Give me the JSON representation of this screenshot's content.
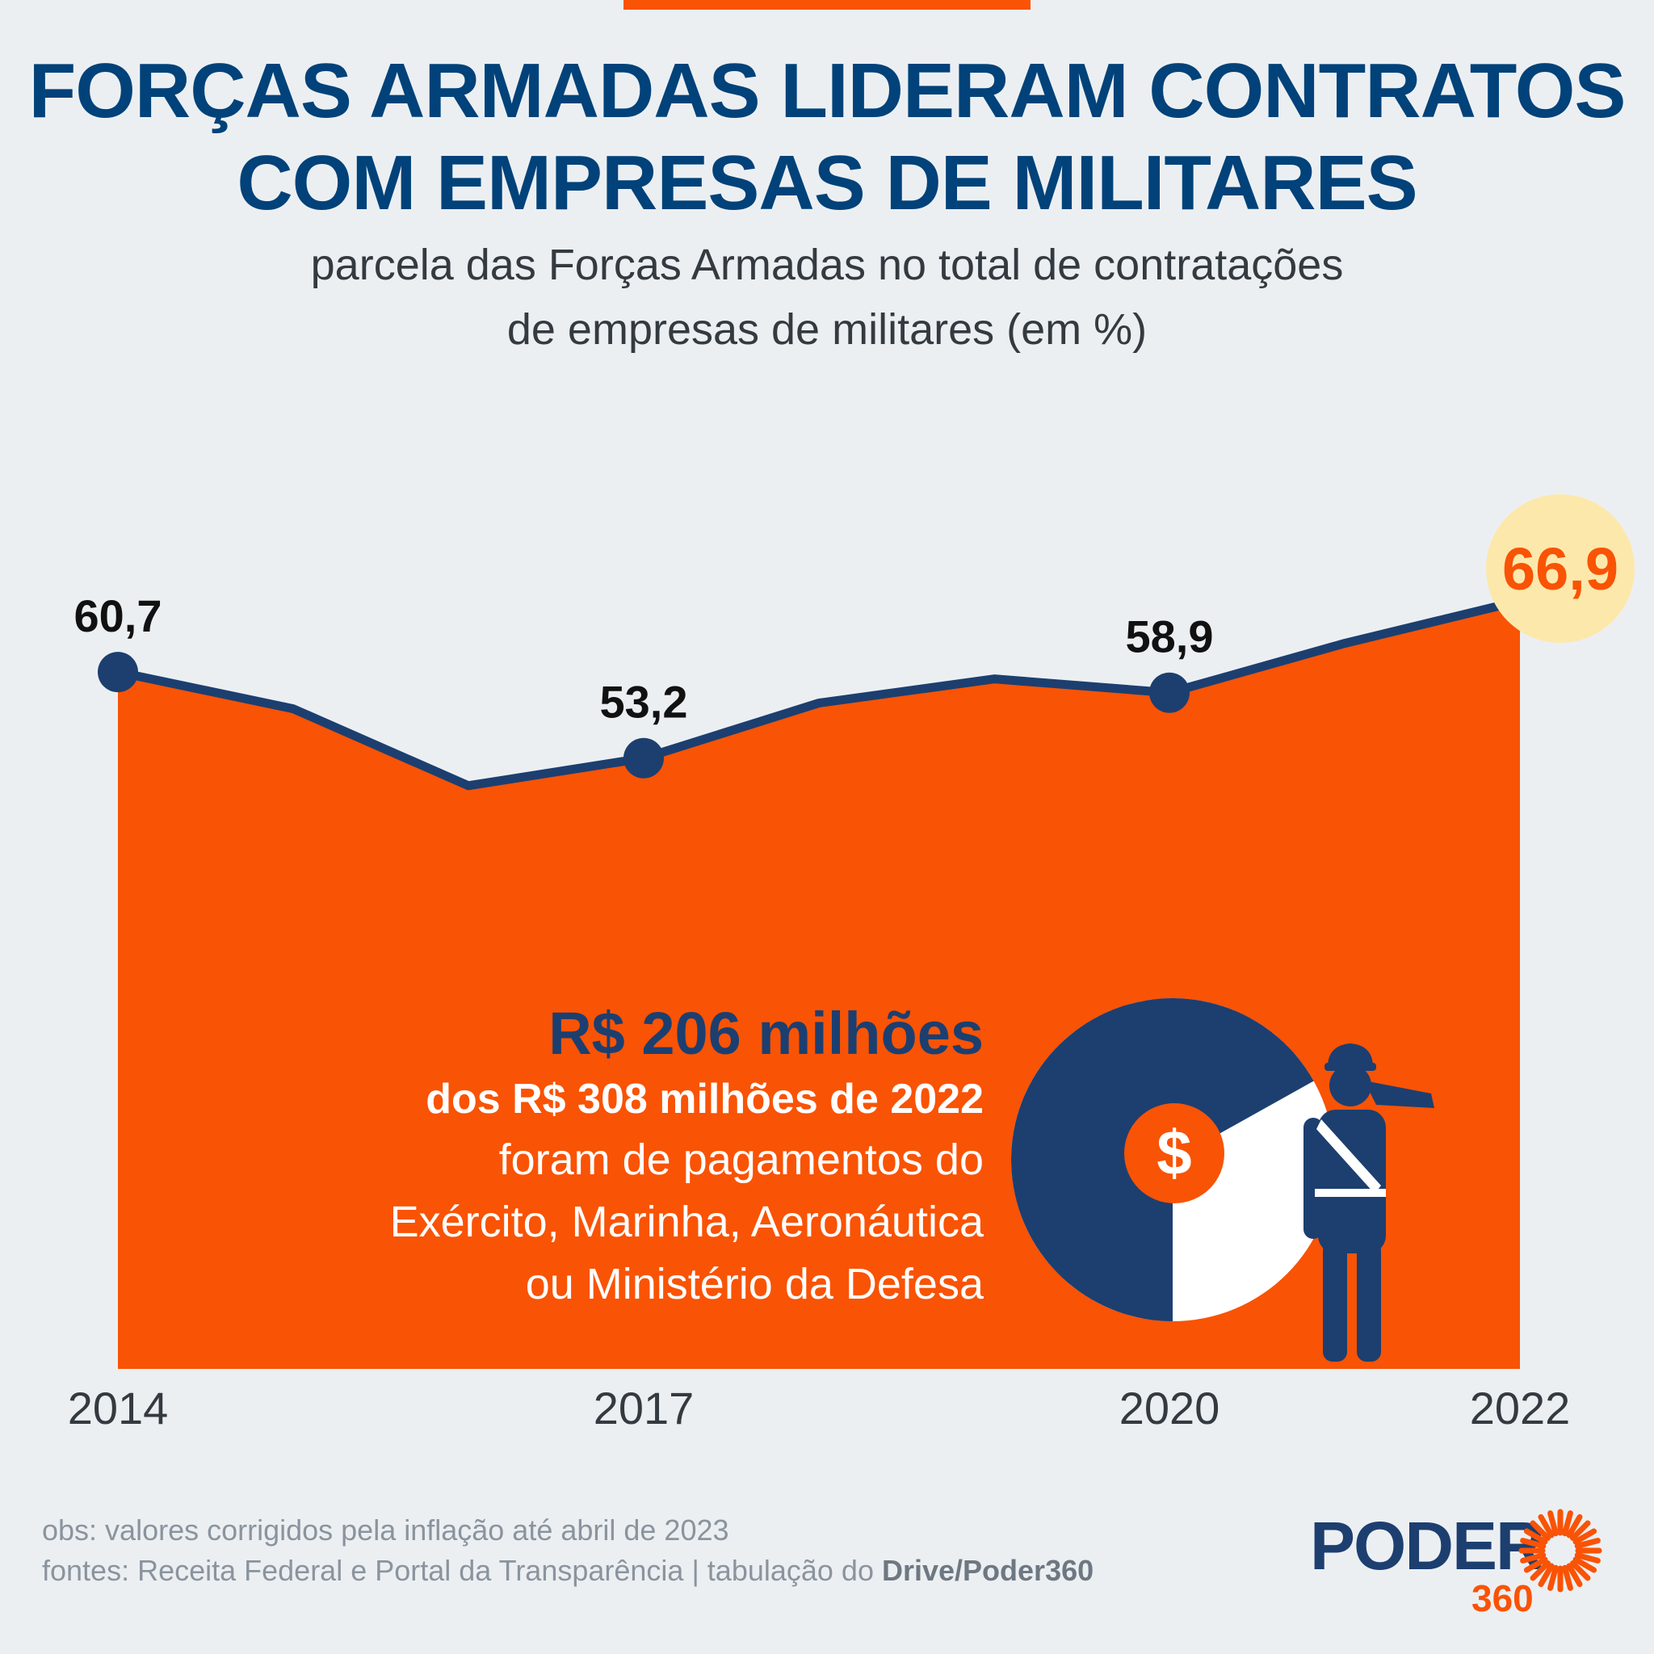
{
  "header": {
    "title_line1": "FORÇAS ARMADAS LIDERAM CONTRATOS",
    "title_line2": "COM EMPRESAS DE MILITARES",
    "subtitle_line1": "parcela das Forças Armadas no total de contratações",
    "subtitle_line2": "de empresas de militares (em %)"
  },
  "colors": {
    "accent": "#f95305",
    "navy": "#1c3f70",
    "title": "#004279",
    "highlight_bg": "#fde8ab",
    "background": "#eceff2"
  },
  "chart_data": {
    "type": "area",
    "title": "FORÇAS ARMADAS LIDERAM CONTRATOS COM EMPRESAS DE MILITARES",
    "subtitle": "parcela das Forças Armadas no total de contratações de empresas de militares (em %)",
    "x": [
      "2014",
      "2015",
      "2016",
      "2017",
      "2018",
      "2019",
      "2020",
      "2021",
      "2022"
    ],
    "values": [
      60.7,
      57.5,
      50.8,
      53.2,
      58.0,
      60.1,
      58.9,
      63.2,
      66.9
    ],
    "xticks": [
      "2014",
      "2017",
      "2020",
      "2022"
    ],
    "labeled_points": [
      {
        "x": "2014",
        "label": "60,7"
      },
      {
        "x": "2017",
        "label": "53,2"
      },
      {
        "x": "2020",
        "label": "58,9"
      },
      {
        "x": "2022",
        "label": "66,9",
        "highlight": true
      }
    ],
    "ylim": [
      0,
      66.9
    ],
    "xlabel": "",
    "ylabel": "%",
    "grid": false,
    "legend": "none"
  },
  "annotation": {
    "headline": "R$ 206 milhões",
    "line_bold": "dos R$ 308 milhões de 2022",
    "line1": "foram de pagamentos do",
    "line2": "Exército, Marinha, Aeronáutica",
    "line3": "ou Ministério da Defesa",
    "pie_share": 0.669,
    "dollar_symbol": "$"
  },
  "footer": {
    "obs": "obs: valores corrigidos pela inflação até abril de 2023",
    "sources_prefix": "fontes: Receita Federal e Portal da Transparência | tabulação do ",
    "sources_bold": "Drive/Poder360"
  },
  "logo": {
    "name": "PODER",
    "number": "360"
  }
}
